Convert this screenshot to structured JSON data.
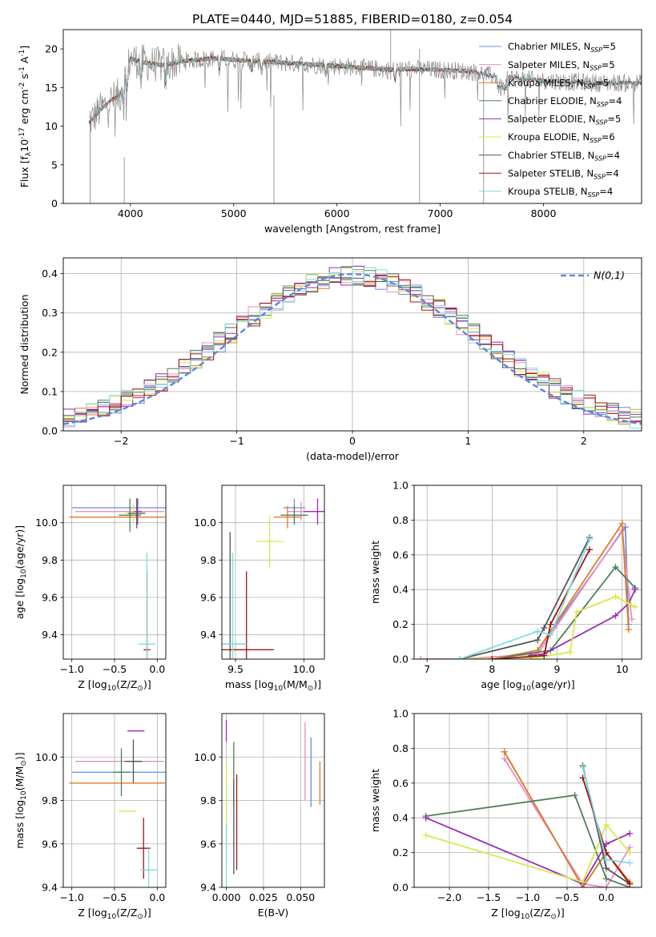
{
  "figure": {
    "title": "PLATE=0440, MJD=51885, FIBERID=0180, z=0.054"
  },
  "colors": {
    "Chabrier MILES": "#6a8ed8",
    "Salpeter MILES": "#e88ec6",
    "Kroupa MILES": "#e07b22",
    "Chabrier ELODIE": "#4f7f5a",
    "Salpeter ELODIE": "#9a2ab8",
    "Kroupa ELODIE": "#d7ea4a",
    "Chabrier STELIB": "#555555",
    "Salpeter STELIB": "#a01616",
    "Kroupa STELIB": "#7fdbe0",
    "data": "#888888"
  },
  "legend_labels": [
    "Chabrier MILES, N$_{SSP}$=5",
    "Salpeter MILES, N$_{SSP}$=5",
    "Kroupa MILES, N$_{SSP}$=5",
    "Chabrier ELODIE, N$_{SSP}$=4",
    "Salpeter ELODIE, N$_{SSP}$=5",
    "Kroupa ELODIE, N$_{SSP}$=6",
    "Chabrier STELIB, N$_{SSP}$=4",
    "Salpeter STELIB, N$_{SSP}$=4",
    "Kroupa STELIB, N$_{SSP}$=4"
  ],
  "chart_data": [
    {
      "id": "spectrum",
      "type": "line",
      "title": "PLATE=0440, MJD=51885, FIBERID=0180, z=0.054",
      "xlabel": "wavelength [Angstrom, rest frame]",
      "ylabel": "Flux [f$_\\lambda$10$^{-17}$ erg cm$^{-2}$ s$^{-1}$ A$^{-1}$]",
      "xlim": [
        3350,
        8950
      ],
      "ylim": [
        0,
        22.5
      ],
      "xticks": [
        4000,
        5000,
        6000,
        7000,
        8000
      ],
      "yticks": [
        0,
        5,
        10,
        15,
        20
      ],
      "grid": false,
      "legend": "top-right",
      "continuum": {
        "x": [
          3600,
          3700,
          3800,
          3900,
          4000,
          4100,
          4300,
          4500,
          4800,
          5000,
          5500,
          6000,
          6300,
          6500,
          6700,
          7000,
          7300,
          7500,
          8000,
          8500
        ],
        "y": [
          10.5,
          12.0,
          13.3,
          14.0,
          18.8,
          18.3,
          17.9,
          18.4,
          18.8,
          18.6,
          18.2,
          17.8,
          17.5,
          17.3,
          17.4,
          17.3,
          17.1,
          16.5,
          15.9,
          15.6
        ]
      },
      "series_names": [
        "Chabrier MILES",
        "Salpeter MILES",
        "Kroupa MILES",
        "Chabrier ELODIE",
        "Salpeter ELODIE",
        "Kroupa ELODIE",
        "Chabrier STELIB",
        "Salpeter STELIB",
        "Kroupa STELIB"
      ],
      "model_ranges": [
        [
          3600,
          7400
        ],
        [
          3600,
          7400
        ],
        [
          3600,
          7400
        ],
        [
          3900,
          6800
        ],
        [
          3900,
          6800
        ],
        [
          3900,
          6800
        ],
        [
          3600,
          8950
        ],
        [
          3600,
          8950
        ],
        [
          3600,
          8950
        ]
      ]
    },
    {
      "id": "residuals",
      "type": "histogram",
      "xlabel": "(data-model)/error",
      "ylabel": "Normed distribution",
      "xlim": [
        -2.5,
        2.5
      ],
      "ylim": [
        0,
        0.44
      ],
      "xticks": [
        -2,
        -1,
        0,
        1,
        2
      ],
      "yticks": [
        0.0,
        0.1,
        0.2,
        0.3,
        0.4
      ],
      "grid": true,
      "legend": "top-right",
      "reference": {
        "name": "$\\mathcal{N}(0,1)$",
        "mean": 0,
        "sigma": 1,
        "color": "#5f86d9"
      },
      "bin_start": -2.5,
      "bin_width": 0.1
    },
    {
      "id": "age_vs_Z",
      "type": "errorbar",
      "xlabel": "Z [log$_{10}$(Z/Z$_\\odot$)]",
      "ylabel": "age  [log$_{10}$(age/yr)]",
      "xlim": [
        -1.1,
        0.1
      ],
      "ylim": [
        9.27,
        10.2
      ],
      "xticks": [
        -1.0,
        -0.5,
        0.0
      ],
      "yticks": [
        9.4,
        9.6,
        9.8,
        10.0
      ],
      "grid": true,
      "points": [
        {
          "x": -0.45,
          "xerr": 0.55,
          "y": 10.08,
          "yerr": 0.0
        },
        {
          "x": -0.44,
          "xerr": 0.52,
          "y": 10.06,
          "yerr": 0.0
        },
        {
          "x": -0.47,
          "xerr": 0.56,
          "y": 10.03,
          "yerr": 0.0
        },
        {
          "x": -0.32,
          "xerr": 0.13,
          "y": 10.04,
          "yerr": 0.09
        },
        {
          "x": -0.23,
          "xerr": 0.05,
          "y": 10.06,
          "yerr": 0.07
        },
        {
          "x": -0.28,
          "xerr": 0.1,
          "y": 10.05,
          "yerr": 0.05
        },
        {
          "x": -0.24,
          "xerr": 0.1,
          "y": 10.05,
          "yerr": 0.08
        },
        {
          "x": -0.12,
          "xerr": 0.04,
          "y": 9.32,
          "yerr": 0.42
        },
        {
          "x": -0.12,
          "xerr": 0.1,
          "y": 9.35,
          "yerr": 0.49
        }
      ]
    },
    {
      "id": "age_vs_mass",
      "type": "errorbar",
      "xlabel": "mass [log$_{10}$(M/M$_\\odot$)]",
      "ylabel": "",
      "xlim": [
        9.4,
        10.15
      ],
      "ylim": [
        9.27,
        10.2
      ],
      "xticks": [
        9.5,
        10.0
      ],
      "yticks": [
        9.4,
        9.6,
        9.8,
        10.0
      ],
      "grid": true,
      "points": [
        {
          "x": 9.93,
          "xerr": 0.08,
          "y": 10.08,
          "yerr": 0.05
        },
        {
          "x": 9.98,
          "xerr": 0.1,
          "y": 10.06,
          "yerr": 0.05
        },
        {
          "x": 9.88,
          "xerr": 0.1,
          "y": 10.03,
          "yerr": 0.06
        },
        {
          "x": 9.93,
          "xerr": 0.1,
          "y": 10.04,
          "yerr": 0.05
        },
        {
          "x": 10.1,
          "xerr": 0.1,
          "y": 10.06,
          "yerr": 0.07
        },
        {
          "x": 9.75,
          "xerr": 0.1,
          "y": 9.9,
          "yerr": 0.14
        },
        {
          "x": 9.46,
          "xerr": 0.1,
          "y": 9.35,
          "yerr": 0.6
        },
        {
          "x": 9.58,
          "xerr": 0.2,
          "y": 9.32,
          "yerr": 0.42
        },
        {
          "x": 9.48,
          "xerr": 0.1,
          "y": 9.35,
          "yerr": 0.49
        }
      ]
    },
    {
      "id": "weight_vs_age",
      "type": "line",
      "xlabel": "age  [log$_{10}$(age/yr)]",
      "ylabel": "mass weight",
      "xlim": [
        6.8,
        10.3
      ],
      "ylim": [
        0,
        1
      ],
      "xticks": [
        7,
        8,
        9,
        10
      ],
      "yticks": [
        0.0,
        0.2,
        0.4,
        0.6,
        0.8,
        1.0
      ],
      "grid": true,
      "series": [
        {
          "name": "Chabrier MILES",
          "x": [
            6.9,
            8.0,
            8.7,
            10.05,
            10.1
          ],
          "y": [
            0.0,
            0.0,
            0.05,
            0.76,
            0.2
          ]
        },
        {
          "name": "Salpeter MILES",
          "x": [
            6.9,
            7.5,
            8.7,
            10.0,
            10.15
          ],
          "y": [
            0.0,
            0.0,
            0.03,
            0.74,
            0.23
          ]
        },
        {
          "name": "Kroupa MILES",
          "x": [
            7.5,
            8.0,
            8.7,
            10.0,
            10.1
          ],
          "y": [
            0.0,
            0.0,
            0.05,
            0.78,
            0.17
          ]
        },
        {
          "name": "Chabrier ELODIE",
          "x": [
            8.0,
            8.9,
            9.9,
            10.2
          ],
          "y": [
            0.0,
            0.05,
            0.53,
            0.41
          ]
        },
        {
          "name": "Salpeter ELODIE",
          "x": [
            8.6,
            8.8,
            9.9,
            10.1,
            10.2
          ],
          "y": [
            0.02,
            0.03,
            0.25,
            0.32,
            0.4
          ]
        },
        {
          "name": "Kroupa ELODIE",
          "x": [
            7.5,
            8.7,
            9.2,
            9.3,
            9.9,
            10.1,
            10.2
          ],
          "y": [
            0.0,
            0.01,
            0.04,
            0.27,
            0.36,
            0.32,
            0.3
          ]
        },
        {
          "name": "Chabrier STELIB",
          "x": [
            7.5,
            8.7,
            8.8,
            9.5
          ],
          "y": [
            0.0,
            0.11,
            0.18,
            0.7
          ]
        },
        {
          "name": "Salpeter STELIB",
          "x": [
            8.0,
            8.8,
            8.9,
            9.5
          ],
          "y": [
            0.0,
            0.02,
            0.2,
            0.63
          ]
        },
        {
          "name": "Kroupa STELIB",
          "x": [
            7.5,
            8.7,
            8.9,
            9.5
          ],
          "y": [
            0.0,
            0.16,
            0.14,
            0.69
          ]
        }
      ]
    },
    {
      "id": "mass_vs_Z",
      "type": "errorbar",
      "xlabel": "Z [log$_{10}$(Z/Z$_\\odot$)]",
      "ylabel": "mass [log$_{10}$(M/M$_\\odot$)]",
      "xlim": [
        -1.1,
        0.1
      ],
      "ylim": [
        9.4,
        10.2
      ],
      "xticks": [
        -1.0,
        -0.5,
        0.0
      ],
      "yticks": [
        9.4,
        9.6,
        9.8,
        10.0
      ],
      "grid": true,
      "points": [
        {
          "x": -0.45,
          "xerr": 0.55,
          "y": 9.93,
          "yerr": 0.0
        },
        {
          "x": -0.44,
          "xerr": 0.52,
          "y": 9.98,
          "yerr": 0.0
        },
        {
          "x": -0.47,
          "xerr": 0.56,
          "y": 9.88,
          "yerr": 0.0
        },
        {
          "x": -0.42,
          "xerr": 0.1,
          "y": 9.93,
          "yerr": 0.11
        },
        {
          "x": -0.25,
          "xerr": 0.1,
          "y": 10.12,
          "yerr": 0.0
        },
        {
          "x": -0.35,
          "xerr": 0.1,
          "y": 9.75,
          "yerr": 0.0
        },
        {
          "x": -0.28,
          "xerr": 0.1,
          "y": 9.98,
          "yerr": 0.1
        },
        {
          "x": -0.16,
          "xerr": 0.08,
          "y": 9.58,
          "yerr": 0.14
        },
        {
          "x": -0.1,
          "xerr": 0.1,
          "y": 9.48,
          "yerr": 0.1
        }
      ]
    },
    {
      "id": "mass_vs_EBV",
      "type": "errorbar",
      "xlabel": "E(B-V)",
      "ylabel": "",
      "xlim": [
        -0.003,
        0.066
      ],
      "ylim": [
        9.4,
        10.2
      ],
      "xticks": [
        0.0,
        0.025,
        0.05
      ],
      "yticks": [
        9.4,
        9.6,
        9.8,
        10.0
      ],
      "xticklabels": [
        "0.000",
        "0.025",
        "0.050"
      ],
      "grid": true,
      "points": [
        {
          "x": 0.057,
          "y": 9.93,
          "yerr": 0.16
        },
        {
          "x": 0.053,
          "y": 9.98,
          "yerr": 0.18
        },
        {
          "x": 0.063,
          "y": 9.88,
          "yerr": 0.1
        },
        {
          "x": 0.005,
          "y": 9.92,
          "yerr": 0.15
        },
        {
          "x": 0.0,
          "y": 10.12,
          "yerr": 0.05
        },
        {
          "x": 0.0,
          "y": 9.78,
          "yerr": 0.2
        },
        {
          "x": 0.005,
          "y": 9.68,
          "yerr": 0.22
        },
        {
          "x": 0.007,
          "y": 9.7,
          "yerr": 0.22
        },
        {
          "x": 0.0,
          "y": 9.55,
          "yerr": 0.14
        }
      ]
    },
    {
      "id": "weight_vs_Z",
      "type": "line",
      "xlabel": "Z [log$_{10}$(Z/Z$_\\odot$)]",
      "ylabel": "mass weight",
      "xlim": [
        -2.45,
        0.45
      ],
      "ylim": [
        0,
        1
      ],
      "xticks": [
        -2.0,
        -1.5,
        -1.0,
        -0.5,
        0.0
      ],
      "yticks": [
        0.0,
        0.2,
        0.4,
        0.6,
        0.8,
        1.0
      ],
      "grid": true,
      "series": [
        {
          "name": "Chabrier MILES",
          "x": [
            -1.3,
            -0.3,
            0.0,
            0.3
          ],
          "y": [
            0.78,
            0.0,
            0.2,
            0.02
          ]
        },
        {
          "name": "Salpeter MILES",
          "x": [
            -1.3,
            -0.3,
            0.0,
            0.3
          ],
          "y": [
            0.74,
            0.02,
            0.0,
            0.23
          ]
        },
        {
          "name": "Kroupa MILES",
          "x": [
            -1.3,
            -0.3,
            0.0,
            0.3
          ],
          "y": [
            0.78,
            0.0,
            0.2,
            0.03
          ]
        },
        {
          "name": "Chabrier ELODIE",
          "x": [
            -2.3,
            -0.4,
            0.0,
            0.3
          ],
          "y": [
            0.41,
            0.53,
            0.05,
            0.0
          ]
        },
        {
          "name": "Salpeter ELODIE",
          "x": [
            -2.3,
            -0.3,
            0.0,
            0.3
          ],
          "y": [
            0.4,
            0.02,
            0.25,
            0.31
          ]
        },
        {
          "name": "Kroupa ELODIE",
          "x": [
            -2.3,
            -0.3,
            0.0,
            0.3
          ],
          "y": [
            0.3,
            0.03,
            0.36,
            0.2
          ]
        },
        {
          "name": "Chabrier STELIB",
          "x": [
            -0.3,
            0.0,
            0.3
          ],
          "y": [
            0.7,
            0.11,
            0.02
          ]
        },
        {
          "name": "Salpeter STELIB",
          "x": [
            -0.3,
            0.0,
            0.3
          ],
          "y": [
            0.63,
            0.2,
            0.02
          ]
        },
        {
          "name": "Kroupa STELIB",
          "x": [
            -0.3,
            0.0,
            0.3
          ],
          "y": [
            0.69,
            0.16,
            0.14
          ]
        }
      ]
    }
  ]
}
